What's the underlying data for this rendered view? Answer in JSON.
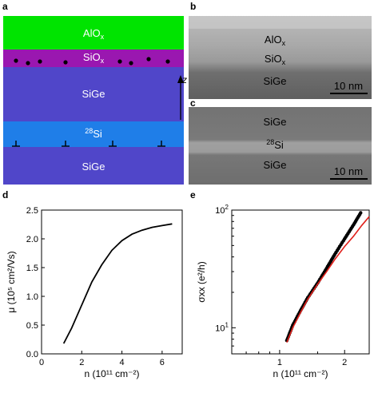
{
  "panels": {
    "a": "a",
    "b": "b",
    "c": "c",
    "d": "d",
    "e": "e"
  },
  "stack_a": {
    "layers": [
      {
        "label": "AlO",
        "sub": "x",
        "color": "#00e400"
      },
      {
        "label": "SiO",
        "sub": "x",
        "color": "#9a17b0"
      },
      {
        "label": "SiGe",
        "sub": "",
        "color": "#5046c9"
      },
      {
        "sup": "28",
        "label": "Si",
        "color": "#1f7ee8"
      },
      {
        "label": "SiGe",
        "sub": "",
        "color": "#5046c9"
      }
    ],
    "axis_label": "z"
  },
  "tem_b": {
    "labels": [
      {
        "text": "AlO",
        "sub": "x"
      },
      {
        "text": "SiO",
        "sub": "x"
      },
      {
        "text": "SiGe",
        "sub": ""
      }
    ],
    "scalebar": "10 nm"
  },
  "tem_c": {
    "labels": [
      {
        "text": "SiGe",
        "sup": ""
      },
      {
        "text": "Si",
        "sup": "28"
      },
      {
        "text": "SiGe",
        "sup": ""
      }
    ],
    "scalebar": "10 nm"
  },
  "chart_data": [
    {
      "type": "line",
      "panel": "d",
      "xlabel": "n  (10¹¹ cm⁻²)",
      "ylabel": "μ  (10⁵ cm²/Vs)",
      "xlim": [
        0,
        7
      ],
      "ylim": [
        0,
        2.5
      ],
      "xticks": [
        0,
        2,
        4,
        6
      ],
      "yticks": [
        0.0,
        0.5,
        1.0,
        1.5,
        2.0,
        2.5
      ],
      "x": [
        1.1,
        1.5,
        2.0,
        2.5,
        3.0,
        3.5,
        4.0,
        4.5,
        5.0,
        5.5,
        6.0,
        6.5
      ],
      "y": [
        0.18,
        0.45,
        0.85,
        1.25,
        1.55,
        1.8,
        1.97,
        2.08,
        2.15,
        2.2,
        2.23,
        2.26
      ],
      "colors": [
        "#000000"
      ]
    },
    {
      "type": "scatter",
      "panel": "e",
      "xlabel": "n  (10¹¹ cm⁻²)",
      "ylabel": "σxx  (e²/h)",
      "xscale": "log",
      "yscale": "log",
      "xlim": [
        0.6,
        2.6
      ],
      "ylim": [
        6,
        100
      ],
      "xticks": [
        1,
        2
      ],
      "yticks": [
        10,
        100
      ],
      "series": [
        {
          "style": "points",
          "color": "#000000",
          "x": [
            1.08,
            1.15,
            1.25,
            1.35,
            1.5,
            1.65,
            1.8,
            2.0,
            2.2,
            2.4
          ],
          "y": [
            7.8,
            10.5,
            14,
            18,
            24,
            32,
            42,
            57,
            75,
            98
          ]
        },
        {
          "style": "fit",
          "color": "#e0201b",
          "x": [
            1.08,
            1.15,
            1.25,
            1.35,
            1.5,
            1.65,
            1.8,
            2.0,
            2.2,
            2.4,
            2.6
          ],
          "y": [
            7.5,
            10,
            13.5,
            17.5,
            23.5,
            30,
            38,
            49,
            60,
            74,
            88
          ]
        }
      ]
    }
  ]
}
